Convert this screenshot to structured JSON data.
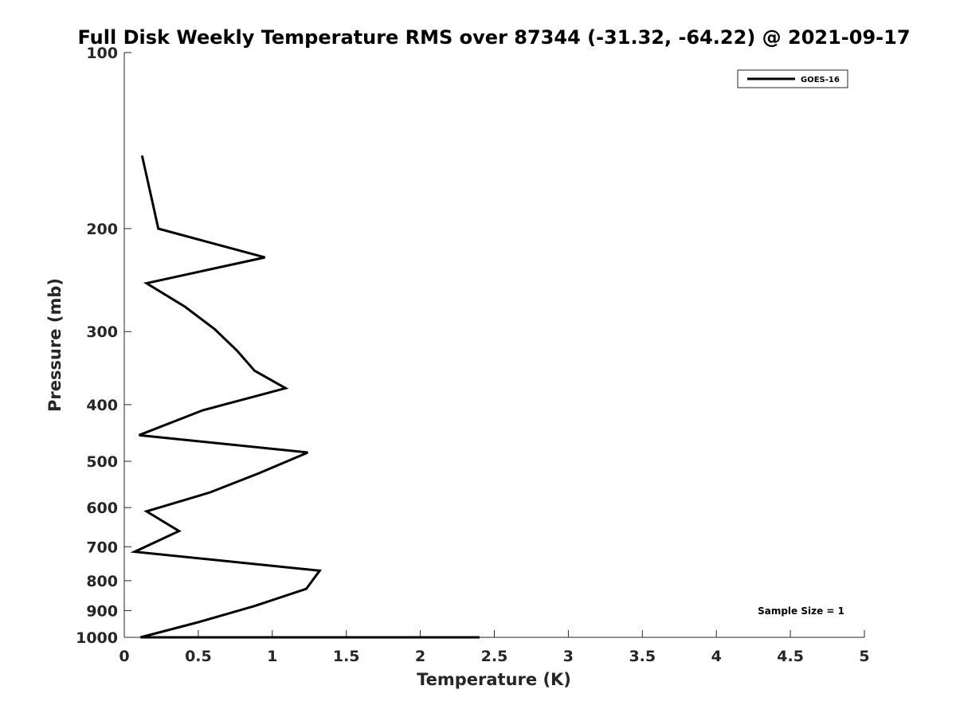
{
  "chart_data": {
    "type": "line",
    "title": "Full Disk Weekly Temperature RMS over 87344 (-31.32, -64.22) @ 2021-09-17",
    "xlabel": "Temperature (K)",
    "ylabel": "Pressure (mb)",
    "xlim": [
      0,
      5
    ],
    "ylim": [
      100,
      1000
    ],
    "y_scale": "log",
    "y_reversed": true,
    "x_ticks": [
      "0",
      "0.5",
      "1",
      "1.5",
      "2",
      "2.5",
      "3",
      "3.5",
      "4",
      "4.5",
      "5"
    ],
    "y_ticks": [
      "100",
      "200",
      "300",
      "400",
      "500",
      "600",
      "700",
      "800",
      "900",
      "1000"
    ],
    "grid": false,
    "legend_position": "top-right",
    "legend": [
      "GOES-16"
    ],
    "annotation": "Sample Size = 1",
    "series": [
      {
        "name": "GOES-16",
        "color": "#000000",
        "x": [
          0.12,
          0.19,
          0.23,
          0.95,
          0.15,
          0.41,
          0.61,
          0.76,
          0.88,
          1.09,
          0.53,
          0.1,
          1.24,
          0.91,
          0.58,
          0.15,
          0.37,
          0.07,
          1.32,
          1.23,
          0.88,
          0.5,
          0.11,
          0.44,
          1.18,
          1.2,
          0.74,
          2.1,
          2.4,
          1.35,
          0.55,
          1.6,
          0.29,
          0.54,
          0.23,
          0.42,
          1.12
        ],
        "y": [
          150,
          180,
          200,
          224,
          248,
          272,
          297,
          323,
          350,
          375,
          409,
          451,
          483,
          524,
          565,
          609,
          658,
          714,
          769,
          826,
          884,
          942,
          1000,
          1000,
          1000,
          1000,
          1000,
          1000,
          1000,
          1000,
          1000,
          1000,
          1000,
          1000,
          1000,
          1000,
          1000
        ]
      }
    ]
  }
}
